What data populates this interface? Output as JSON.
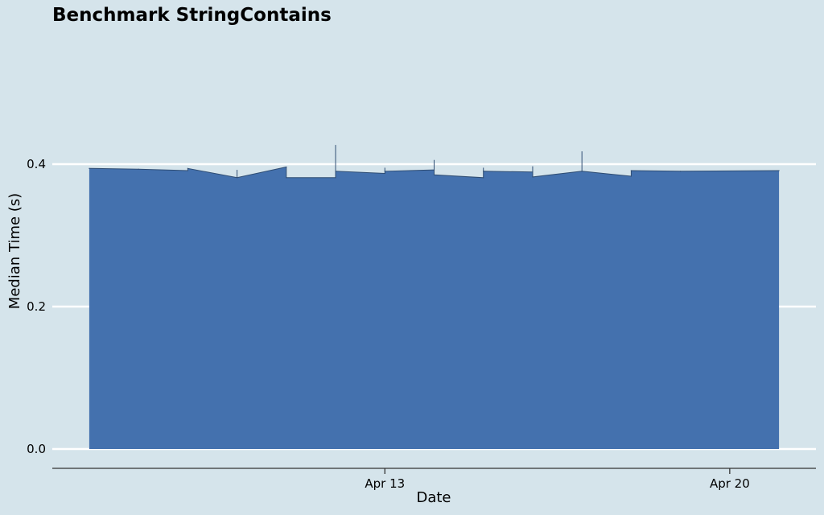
{
  "chart_data": {
    "type": "area",
    "title": "Benchmark StringContains",
    "xlabel": "Date",
    "ylabel": "Median Time (s)",
    "ylim": [
      0,
      0.5
    ],
    "yticks": [
      {
        "value": 0.0,
        "label": "0.0"
      },
      {
        "value": 0.2,
        "label": "0.2"
      },
      {
        "value": 0.4,
        "label": "0.4"
      }
    ],
    "xticks": [
      {
        "value": "2021-04-13",
        "label": "Apr 13"
      },
      {
        "value": "2021-04-20",
        "label": "Apr 20"
      }
    ],
    "x_range": [
      "2021-04-06 06:00",
      "2021-04-21 18:00"
    ],
    "grid": "horizontal",
    "color": "#4471ae",
    "series": [
      {
        "values": [
          {
            "date": "2021-04-07 00:00",
            "median": 0.394
          },
          {
            "date": "2021-04-08 00:00",
            "median": 0.393
          },
          {
            "date": "2021-04-09 00:00",
            "median": 0.391
          },
          {
            "date": "2021-04-09 00:00",
            "median": 0.394
          },
          {
            "date": "2021-04-10 00:00",
            "median": 0.381
          },
          {
            "date": "2021-04-10 00:00",
            "median": 0.381,
            "high": 0.392
          },
          {
            "date": "2021-04-11 00:00",
            "median": 0.396
          },
          {
            "date": "2021-04-11 00:00",
            "median": 0.381
          },
          {
            "date": "2021-04-12 00:00",
            "median": 0.381
          },
          {
            "date": "2021-04-12 00:00",
            "median": 0.39,
            "high": 0.427
          },
          {
            "date": "2021-04-13 00:00",
            "median": 0.387
          },
          {
            "date": "2021-04-13 00:00",
            "median": 0.39,
            "high": 0.395
          },
          {
            "date": "2021-04-14 00:00",
            "median": 0.392
          },
          {
            "date": "2021-04-14 00:00",
            "median": 0.385,
            "high": 0.406
          },
          {
            "date": "2021-04-15 00:00",
            "median": 0.381
          },
          {
            "date": "2021-04-15 00:00",
            "median": 0.39,
            "high": 0.395
          },
          {
            "date": "2021-04-16 00:00",
            "median": 0.389
          },
          {
            "date": "2021-04-16 00:00",
            "median": 0.382,
            "high": 0.397
          },
          {
            "date": "2021-04-17 00:00",
            "median": 0.39,
            "high": 0.418
          },
          {
            "date": "2021-04-18 00:00",
            "median": 0.383
          },
          {
            "date": "2021-04-18 00:00",
            "median": 0.391
          },
          {
            "date": "2021-04-19 00:00",
            "median": 0.39
          },
          {
            "date": "2021-04-21 00:00",
            "median": 0.391
          }
        ]
      }
    ]
  }
}
